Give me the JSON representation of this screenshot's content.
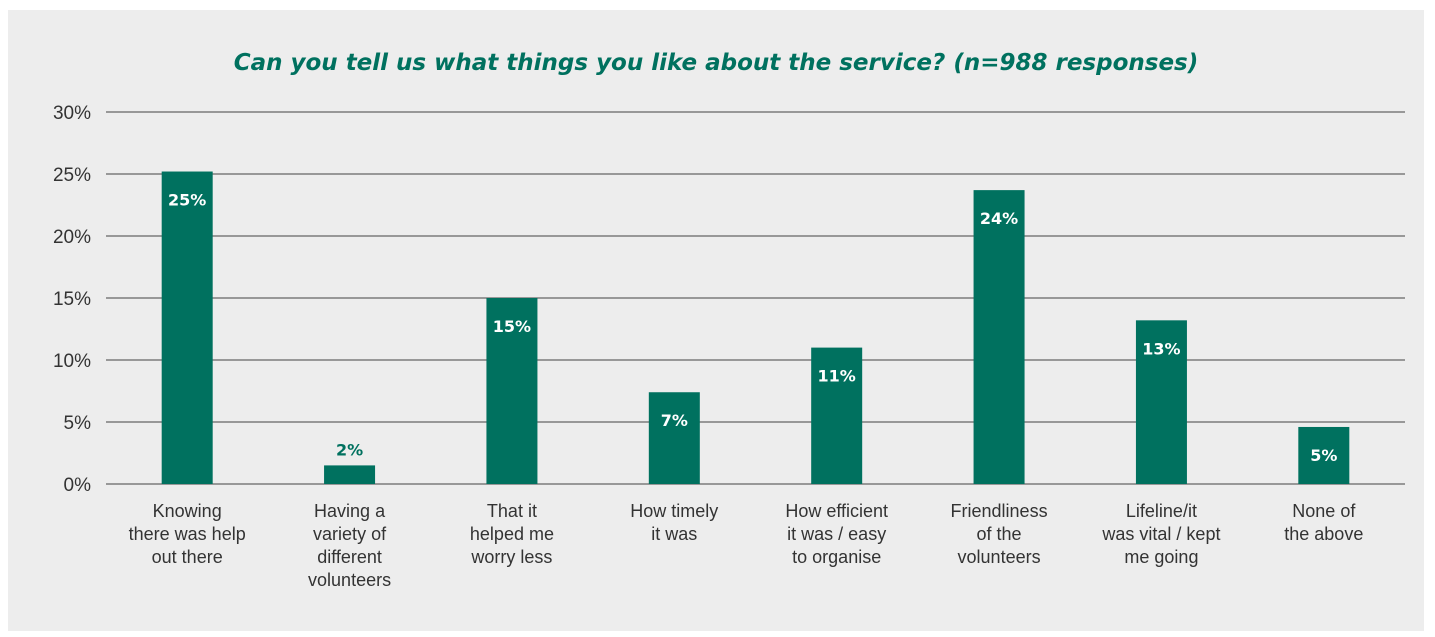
{
  "chart_data": {
    "type": "bar",
    "title": "Can you tell us what things you like about the service? (n=988 responses)",
    "xlabel": "",
    "ylabel": "",
    "ylim": [
      0,
      30
    ],
    "yticks": [
      0,
      5,
      10,
      15,
      20,
      25,
      30
    ],
    "ytick_format": "percent",
    "grid": true,
    "legend": "none",
    "categories": [
      "Knowing there was help out there",
      "Having a variety of different volunteers",
      "That it helped me worry less",
      "How timely it was",
      "How efficient it was / easy to organise",
      "Friendliness of the volunteers",
      "Lifeline/it was vital / kept me going",
      "None of the above"
    ],
    "category_lines": [
      [
        "Knowing",
        "there was help",
        "out there"
      ],
      [
        "Having a",
        "variety of",
        "different",
        "volunteers"
      ],
      [
        "That it",
        "helped me",
        "worry less"
      ],
      [
        "How timely",
        "it was"
      ],
      [
        "How efficient",
        "it was / easy",
        "to organise"
      ],
      [
        "Friendliness",
        "of the",
        "volunteers"
      ],
      [
        "Lifeline/it",
        "was vital / kept",
        "me going"
      ],
      [
        "None of",
        "the above"
      ]
    ],
    "values": [
      25.2,
      1.5,
      15.0,
      7.4,
      11.0,
      23.7,
      13.2,
      4.6
    ],
    "data_labels": [
      "25%",
      "2%",
      "15%",
      "7%",
      "11%",
      "24%",
      "13%",
      "5%"
    ]
  },
  "colors": {
    "bar": "#00715f",
    "title": "#00715f",
    "background": "#ededed",
    "axis_text": "#333333",
    "gridline": "#444444",
    "label_inside": "#ffffff",
    "label_outside": "#00715f"
  }
}
